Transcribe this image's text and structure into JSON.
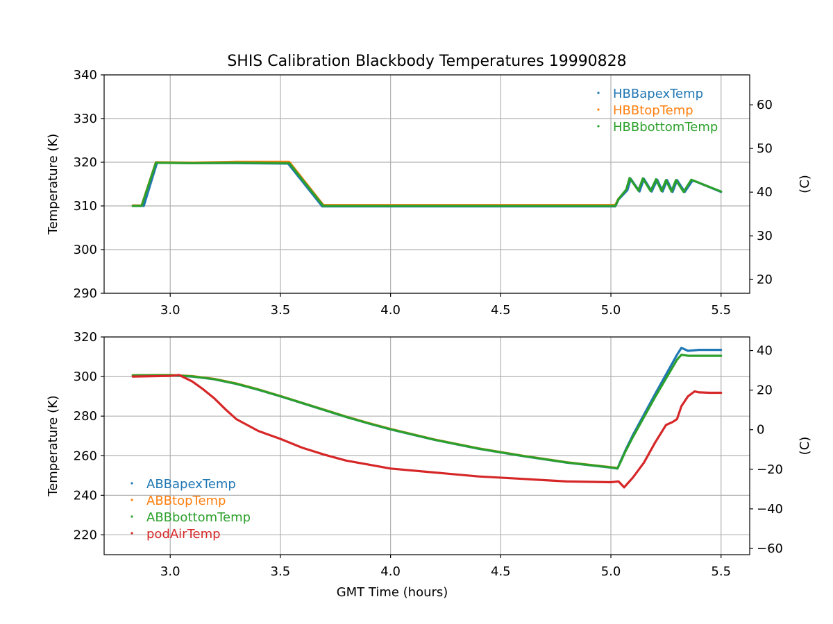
{
  "figure": {
    "title": "SHIS Calibration Blackbody Temperatures 19990828"
  },
  "chart_data": [
    {
      "type": "scatter",
      "xlabel": "",
      "ylabel": "Temperature (K)",
      "ylabel_right": "(C)",
      "xlim": [
        2.7,
        5.63
      ],
      "ylim": [
        290,
        340
      ],
      "ylim_right": [
        16.85,
        66.85
      ],
      "xticks": [
        "3.0",
        "3.5",
        "4.0",
        "4.5",
        "5.0",
        "5.5"
      ],
      "yticks": [
        "290",
        "300",
        "310",
        "320",
        "330",
        "340"
      ],
      "yticks_right": [
        "20",
        "30",
        "40",
        "50",
        "60"
      ],
      "grid": true,
      "legend_position": "top-right",
      "series": [
        {
          "name": "HBBapexTemp",
          "color": "#1f77b4",
          "x": [
            2.83,
            2.88,
            2.94,
            3.1,
            3.3,
            3.535,
            3.69,
            5.02,
            5.035,
            5.075,
            5.09,
            5.13,
            5.15,
            5.185,
            5.21,
            5.235,
            5.255,
            5.28,
            5.3,
            5.335,
            5.37,
            5.39,
            5.5
          ],
          "y": [
            310.0,
            310.0,
            319.9,
            319.8,
            319.8,
            319.7,
            309.9,
            309.9,
            311.5,
            313.6,
            316.2,
            313.3,
            316.2,
            313.3,
            316.0,
            313.3,
            315.9,
            313.2,
            315.9,
            313.2,
            315.8,
            315.5,
            313.2
          ]
        },
        {
          "name": "HBBtopTemp",
          "color": "#ff7f0e",
          "x": [
            2.83,
            2.87,
            2.935,
            3.1,
            3.3,
            3.54,
            3.695,
            5.02,
            5.035
          ],
          "y": [
            310.1,
            310.1,
            320.0,
            319.9,
            320.1,
            320.1,
            310.2,
            310.2,
            311.7
          ]
        },
        {
          "name": "HBBbottomTemp",
          "color": "#2ca02c",
          "x": [
            2.83,
            2.87,
            2.935,
            3.1,
            3.3,
            3.54,
            3.695,
            5.02,
            5.035,
            5.07,
            5.085,
            5.125,
            5.145,
            5.18,
            5.205,
            5.23,
            5.25,
            5.275,
            5.295,
            5.33,
            5.365,
            5.385,
            5.5
          ],
          "y": [
            310.0,
            310.0,
            319.9,
            319.8,
            319.9,
            319.8,
            310.0,
            310.0,
            311.6,
            313.8,
            316.4,
            313.5,
            316.3,
            313.4,
            316.1,
            313.4,
            315.9,
            313.3,
            315.9,
            313.2,
            316.0,
            315.6,
            313.3
          ]
        }
      ]
    },
    {
      "type": "scatter",
      "xlabel": "GMT Time (hours)",
      "ylabel": "Temperature (K)",
      "ylabel_right": "(C)",
      "xlim": [
        2.7,
        5.63
      ],
      "ylim": [
        210,
        320
      ],
      "ylim_right": [
        -63.15,
        46.85
      ],
      "xticks": [
        "3.0",
        "3.5",
        "4.0",
        "4.5",
        "5.0",
        "5.5"
      ],
      "yticks": [
        "220",
        "240",
        "260",
        "280",
        "300",
        "320"
      ],
      "yticks_right": [
        "-60",
        "-40",
        "-20",
        "0",
        "20",
        "40"
      ],
      "grid": true,
      "legend_position": "bottom-left",
      "series": [
        {
          "name": "ABBapexTemp",
          "color": "#1f77b4",
          "x": [
            2.83,
            3.0,
            3.1,
            3.2,
            3.3,
            3.4,
            3.5,
            3.6,
            3.7,
            3.8,
            3.9,
            4.0,
            4.2,
            4.4,
            4.6,
            4.8,
            5.0,
            5.03,
            5.045,
            5.065,
            5.1,
            5.2,
            5.3,
            5.32,
            5.35,
            5.4,
            5.5
          ],
          "y": [
            300.5,
            300.6,
            300.0,
            298.6,
            296.3,
            293.3,
            290.0,
            286.5,
            283.0,
            279.5,
            276.3,
            273.3,
            268.0,
            263.5,
            259.8,
            256.5,
            254.0,
            253.5,
            257.5,
            262.5,
            270.5,
            291.0,
            311.0,
            314.5,
            313.0,
            313.5,
            313.5
          ]
        },
        {
          "name": "ABBtopTemp",
          "color": "#ff7f0e",
          "x": [
            2.83,
            3.0,
            3.1,
            3.2,
            3.3,
            3.4,
            3.5,
            3.6,
            3.7,
            3.8,
            3.9,
            4.0,
            4.2,
            4.4,
            4.6,
            4.8,
            5.0,
            5.03
          ],
          "y": [
            300.7,
            300.8,
            300.2,
            298.8,
            296.5,
            293.5,
            290.2,
            286.7,
            283.2,
            279.7,
            276.5,
            273.5,
            268.2,
            263.7,
            260.0,
            256.7,
            254.2,
            253.8
          ]
        },
        {
          "name": "ABBbottomTemp",
          "color": "#2ca02c",
          "x": [
            2.83,
            3.0,
            3.1,
            3.2,
            3.3,
            3.4,
            3.5,
            3.6,
            3.7,
            3.8,
            3.9,
            4.0,
            4.2,
            4.4,
            4.6,
            4.8,
            5.0,
            5.03,
            5.045,
            5.065,
            5.1,
            5.2,
            5.3,
            5.32,
            5.35,
            5.4,
            5.5
          ],
          "y": [
            300.6,
            300.7,
            300.1,
            298.7,
            296.4,
            293.4,
            290.1,
            286.6,
            283.1,
            279.6,
            276.4,
            273.4,
            268.1,
            263.6,
            259.9,
            256.6,
            254.1,
            253.6,
            257.0,
            262.0,
            269.5,
            289.5,
            308.5,
            311.0,
            310.5,
            310.5,
            310.5
          ]
        },
        {
          "name": "podAirTemp",
          "color": "#d62728",
          "x": [
            2.83,
            3.0,
            3.04,
            3.1,
            3.15,
            3.2,
            3.25,
            3.3,
            3.4,
            3.5,
            3.6,
            3.7,
            3.8,
            3.9,
            4.0,
            4.2,
            4.4,
            4.6,
            4.8,
            5.0,
            5.035,
            5.06,
            5.1,
            5.15,
            5.2,
            5.25,
            5.28,
            5.3,
            5.32,
            5.35,
            5.38,
            5.4,
            5.45,
            5.5
          ],
          "y": [
            300.0,
            300.3,
            300.8,
            297.5,
            293.5,
            289.0,
            283.5,
            278.5,
            272.5,
            268.5,
            264.0,
            260.5,
            257.5,
            255.5,
            253.5,
            251.5,
            249.5,
            248.3,
            247.0,
            246.6,
            247.0,
            244.0,
            249.0,
            256.5,
            266.5,
            275.5,
            277.0,
            278.5,
            285.0,
            290.0,
            292.5,
            292.0,
            291.8,
            291.8
          ]
        }
      ]
    }
  ]
}
